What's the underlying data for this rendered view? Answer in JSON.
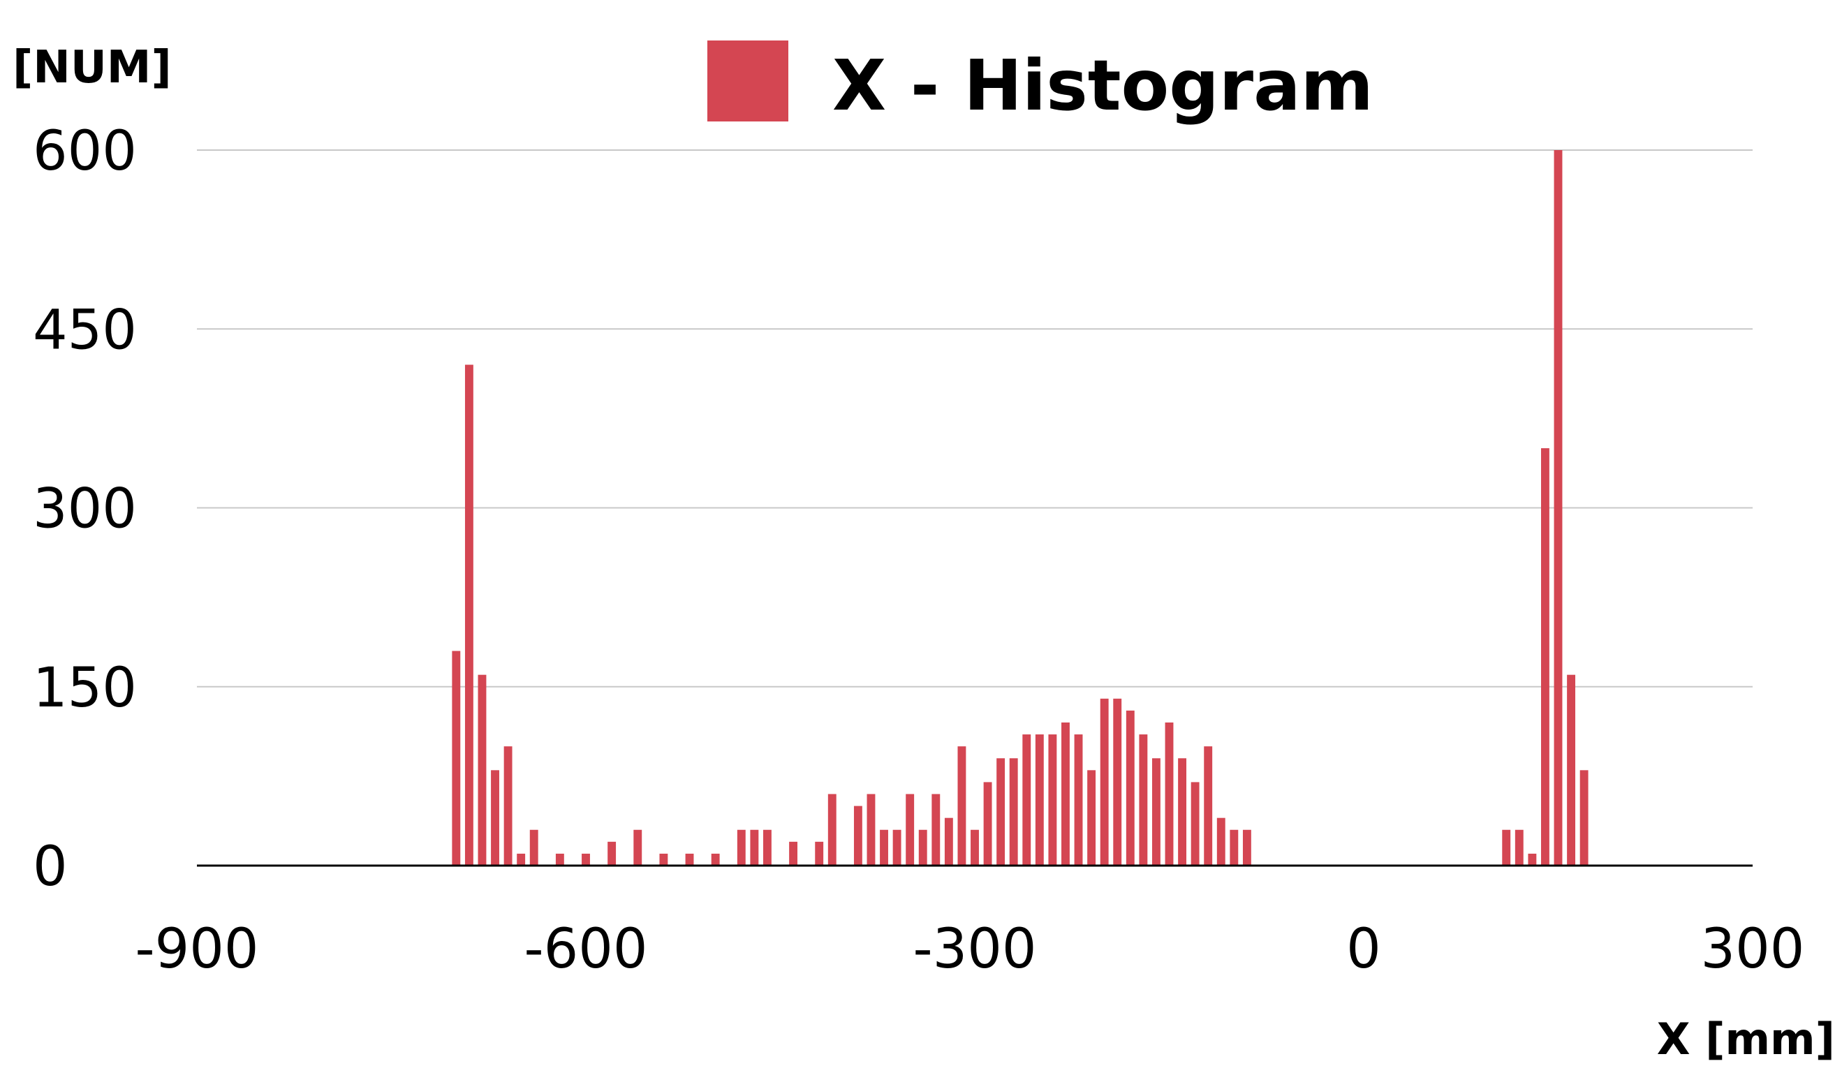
{
  "chart_data": {
    "type": "bar",
    "legend": {
      "label": "X - Histogram",
      "placement": "top-center"
    },
    "xlabel": "X [mm]",
    "ylabel": "[NUM]",
    "xlim": [
      -900,
      300
    ],
    "ylim": [
      0,
      600
    ],
    "x_ticks": [
      "-900",
      "-600",
      "-300",
      "0",
      "300"
    ],
    "y_ticks": [
      "0",
      "150",
      "300",
      "450",
      "600"
    ],
    "grid": true,
    "bin_width": 10,
    "colors": {
      "bar": "#d44652",
      "grid": "#c8c8c8",
      "axis": "#000000"
    },
    "series": [
      {
        "x": [
          -700,
          -690,
          -680,
          -670,
          -660,
          -650,
          -640,
          -620,
          -600,
          -580,
          -560,
          -540,
          -520,
          -500,
          -480,
          -470,
          -460,
          -440,
          -420,
          -410,
          -390,
          -380,
          -370,
          -360,
          -350,
          -340,
          -330,
          -320,
          -310,
          -300,
          -290,
          -280,
          -270,
          -260,
          -250,
          -240,
          -230,
          -220,
          -210,
          -200,
          -190,
          -180,
          -170,
          -160,
          -150,
          -140,
          -130,
          -120,
          -110,
          -100,
          -90,
          -80,
          -70,
          110,
          120,
          130,
          140,
          150,
          160,
          170
        ],
        "values": [
          180,
          420,
          160,
          80,
          100,
          10,
          30,
          10,
          10,
          20,
          30,
          10,
          10,
          10,
          30,
          30,
          30,
          20,
          20,
          60,
          50,
          60,
          30,
          30,
          60,
          30,
          60,
          40,
          100,
          30,
          70,
          90,
          90,
          110,
          110,
          110,
          120,
          110,
          80,
          140,
          140,
          130,
          110,
          90,
          120,
          90,
          70,
          100,
          40,
          30,
          30,
          0,
          0,
          30,
          30,
          10,
          350,
          600,
          160,
          80
        ]
      }
    ]
  }
}
